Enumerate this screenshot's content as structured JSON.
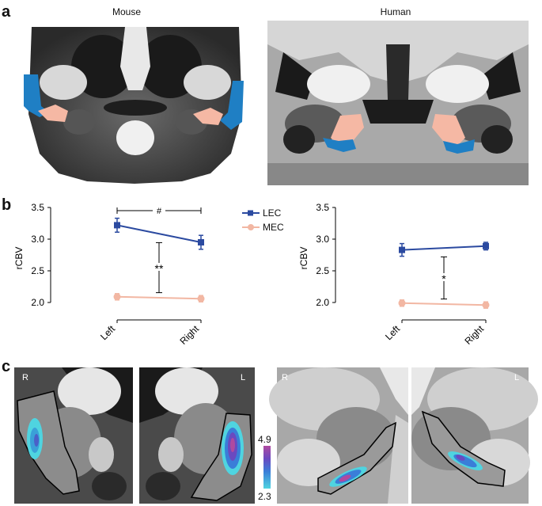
{
  "panel_labels": {
    "a": "a",
    "b": "b",
    "c": "c"
  },
  "panel_a": {
    "mouse_title": "Mouse",
    "human_title": "Human",
    "colors": {
      "lec": "#1f7fc4",
      "mec": "#f5b8a4"
    }
  },
  "panel_b": {
    "legend": [
      {
        "name": "LEC",
        "color": "#2b4aa0"
      },
      {
        "name": "MEC",
        "color": "#f2b7a3"
      }
    ],
    "chart_data": [
      {
        "type": "line",
        "categories": [
          "Left",
          "Right"
        ],
        "ylabel": "rCBV",
        "ylim": [
          1.9,
          3.5
        ],
        "yticks": [
          "2.0",
          "2.5",
          "3.0",
          "3.5"
        ],
        "series": [
          {
            "name": "LEC",
            "values": [
              3.22,
              2.95
            ],
            "errors": [
              0.11,
              0.11
            ],
            "color": "#2b4aa0"
          },
          {
            "name": "MEC",
            "values": [
              2.09,
              2.06
            ],
            "errors": [
              0.05,
              0.05
            ],
            "color": "#f2b7a3"
          }
        ],
        "annotations": [
          {
            "type": "bracket-horizontal",
            "label": "#"
          },
          {
            "type": "bracket-vertical",
            "label": "**"
          }
        ]
      },
      {
        "type": "line",
        "categories": [
          "Left",
          "Right"
        ],
        "ylabel": "rCBV",
        "ylim": [
          1.9,
          3.5
        ],
        "yticks": [
          "2.0",
          "2.5",
          "3.0",
          "3.5"
        ],
        "series": [
          {
            "name": "LEC",
            "values": [
              2.83,
              2.89
            ],
            "errors": [
              0.1,
              0.06
            ],
            "color": "#2b4aa0"
          },
          {
            "name": "MEC",
            "values": [
              1.99,
              1.96
            ],
            "errors": [
              0.05,
              0.05
            ],
            "color": "#f2b7a3"
          }
        ],
        "annotations": [
          {
            "type": "bracket-vertical",
            "label": "*"
          }
        ]
      }
    ]
  },
  "panel_c": {
    "orientation_labels": {
      "mouse_left": "R",
      "mouse_right": "L",
      "human_left": "R",
      "human_right": "L"
    },
    "colorbar": {
      "max": "4.9",
      "min": "2.3"
    }
  }
}
